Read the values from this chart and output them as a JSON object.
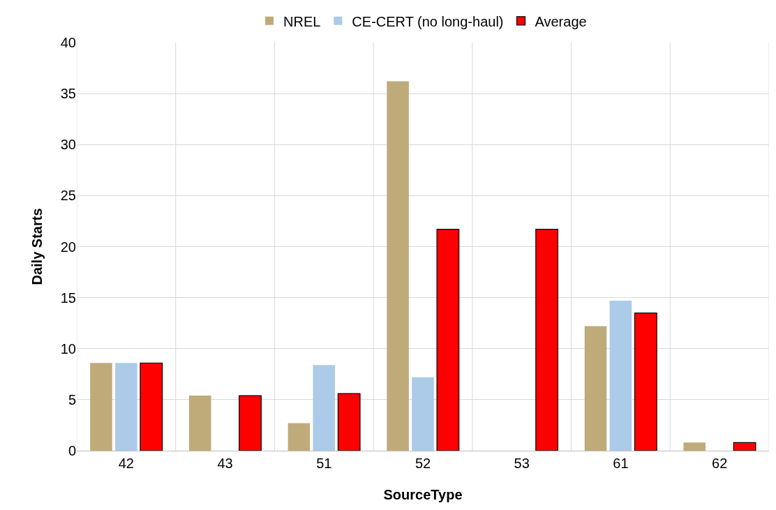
{
  "chart_data": {
    "type": "bar",
    "xlabel": "SourceType",
    "ylabel": "Daily Starts",
    "categories": [
      "42",
      "43",
      "51",
      "52",
      "53",
      "61",
      "62"
    ],
    "series": [
      {
        "name": "NREL",
        "color": "#bfab7a",
        "values": [
          8.6,
          5.4,
          2.7,
          36.2,
          null,
          12.2,
          0.8
        ]
      },
      {
        "name": "CE-CERT (no long-haul)",
        "color": "#abcbe9",
        "values": [
          8.6,
          null,
          8.4,
          7.2,
          null,
          14.7,
          null
        ]
      },
      {
        "name": "Average",
        "color": "#ff0000",
        "values": [
          8.6,
          5.4,
          5.6,
          21.7,
          21.7,
          13.5,
          0.8
        ]
      }
    ],
    "ylim": [
      0,
      40
    ],
    "yticks": [
      0,
      5,
      10,
      15,
      20,
      25,
      30,
      35,
      40
    ],
    "grid": true,
    "legend": "top"
  }
}
